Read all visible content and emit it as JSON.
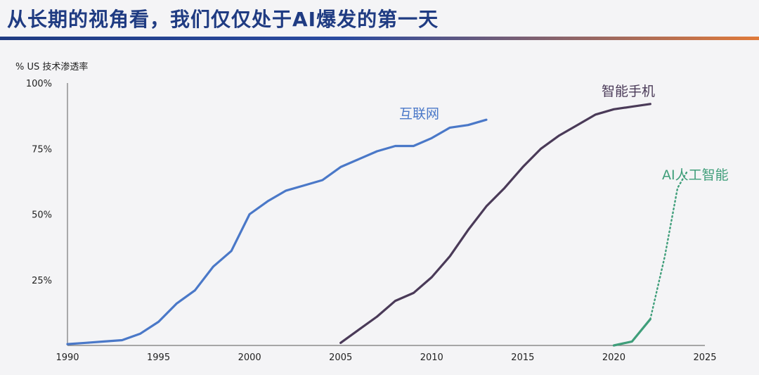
{
  "page": {
    "title": "从长期的视角看，我们仅仅处于AI爆发的第一天"
  },
  "chart_data": {
    "type": "line",
    "title": "",
    "xlabel": "",
    "ylabel": "% US 技术渗透率",
    "xlim": [
      1990,
      2025
    ],
    "ylim": [
      0,
      100
    ],
    "x_ticks": [
      1990,
      1995,
      2000,
      2005,
      2010,
      2015,
      2020,
      2025
    ],
    "y_ticks": [
      {
        "value": 25,
        "label": "25%"
      },
      {
        "value": 50,
        "label": "50%"
      },
      {
        "value": 75,
        "label": "75%"
      },
      {
        "value": 100,
        "label": "100%"
      }
    ],
    "grid": false,
    "legend": "none",
    "series": [
      {
        "name": "互联网",
        "color": "#4a78c8",
        "style": "solid",
        "points": [
          [
            1990,
            0.5
          ],
          [
            1991,
            1
          ],
          [
            1992,
            1.5
          ],
          [
            1993,
            2
          ],
          [
            1994,
            4.5
          ],
          [
            1995,
            9
          ],
          [
            1996,
            16
          ],
          [
            1997,
            21
          ],
          [
            1998,
            30
          ],
          [
            1999,
            36
          ],
          [
            2000,
            50
          ],
          [
            2001,
            55
          ],
          [
            2002,
            59
          ],
          [
            2003,
            61
          ],
          [
            2004,
            63
          ],
          [
            2005,
            68
          ],
          [
            2006,
            71
          ],
          [
            2007,
            74
          ],
          [
            2008,
            76
          ],
          [
            2009,
            76
          ],
          [
            2010,
            79
          ],
          [
            2011,
            83
          ],
          [
            2012,
            84
          ],
          [
            2013,
            86
          ]
        ]
      },
      {
        "name": "智能手机",
        "color": "#4a3a58",
        "style": "solid",
        "points": [
          [
            2005,
            1
          ],
          [
            2006,
            6
          ],
          [
            2007,
            11
          ],
          [
            2008,
            17
          ],
          [
            2009,
            20
          ],
          [
            2010,
            26
          ],
          [
            2011,
            34
          ],
          [
            2012,
            44
          ],
          [
            2013,
            53
          ],
          [
            2014,
            60
          ],
          [
            2015,
            68
          ],
          [
            2016,
            75
          ],
          [
            2017,
            80
          ],
          [
            2018,
            84
          ],
          [
            2019,
            88
          ],
          [
            2020,
            90
          ],
          [
            2021,
            91
          ],
          [
            2022,
            92
          ]
        ]
      },
      {
        "name": "AI人工智能",
        "color": "#3f9e7a",
        "style": "solid",
        "points": [
          [
            2020,
            0
          ],
          [
            2021,
            1.5
          ],
          [
            2022,
            10
          ]
        ]
      },
      {
        "name": "",
        "color": "#3f9e7a",
        "style": "dotted",
        "points": [
          [
            2022,
            10
          ],
          [
            2022.8,
            34
          ],
          [
            2023.5,
            60
          ],
          [
            2024,
            66
          ]
        ]
      }
    ]
  }
}
